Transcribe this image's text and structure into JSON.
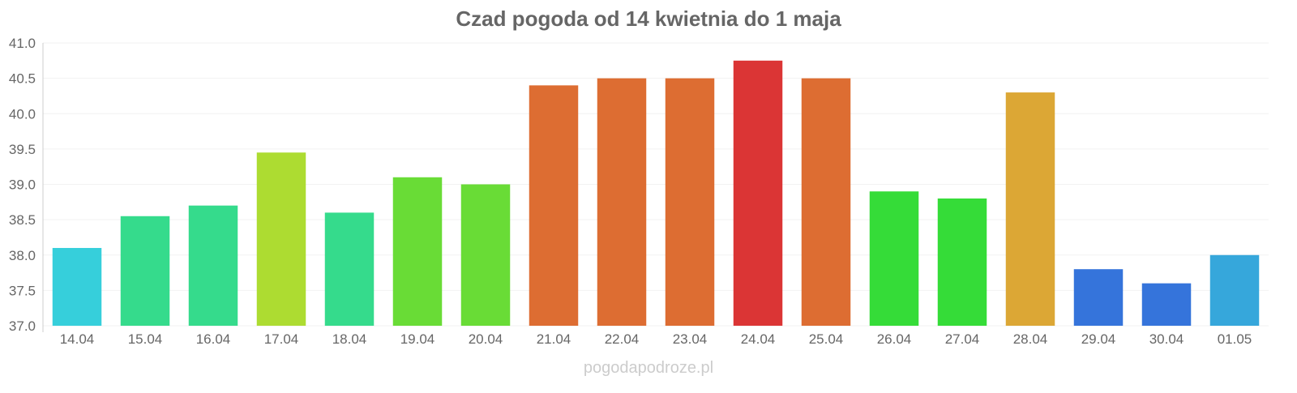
{
  "chart_data": {
    "type": "bar",
    "title": "Czad pogoda od 14 kwietnia do 1 maja",
    "xlabel": "",
    "ylabel": "",
    "ylim": [
      37.0,
      41.0
    ],
    "yticks": [
      "37.0",
      "37.5",
      "38.0",
      "38.5",
      "39.0",
      "39.5",
      "40.0",
      "40.5",
      "41.0"
    ],
    "grid": true,
    "categories": [
      "14.04",
      "15.04",
      "16.04",
      "17.04",
      "18.04",
      "19.04",
      "20.04",
      "21.04",
      "22.04",
      "23.04",
      "24.04",
      "25.04",
      "26.04",
      "27.04",
      "28.04",
      "29.04",
      "30.04",
      "01.05"
    ],
    "values": [
      38.1,
      38.55,
      38.7,
      39.45,
      38.6,
      39.1,
      39.0,
      40.4,
      40.5,
      40.5,
      40.75,
      40.5,
      38.9,
      38.8,
      40.3,
      37.8,
      37.6,
      38.0
    ],
    "colors": [
      "#36cfdb",
      "#35db8c",
      "#35db8c",
      "#addc31",
      "#35db8c",
      "#69dc36",
      "#69dc36",
      "#dd6d32",
      "#dd6d32",
      "#dd6d32",
      "#db3535",
      "#dd6d32",
      "#35dc38",
      "#35dc38",
      "#dca735",
      "#3574db",
      "#3574db",
      "#36a7db"
    ]
  },
  "watermark": "pogodapodroze.pl"
}
